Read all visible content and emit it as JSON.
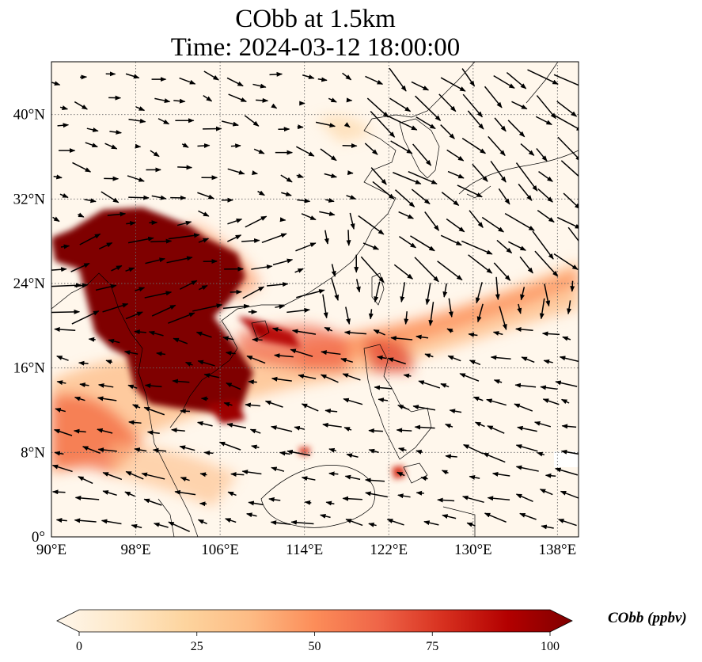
{
  "title": {
    "line1": "CObb at 1.5km",
    "line2": "Time: 2024-03-12 18:00:00"
  },
  "map": {
    "projection": "PlateCarree",
    "lon_range": [
      90,
      140
    ],
    "lat_range": [
      0,
      45
    ],
    "gridlines": true,
    "gridline_style": "dotted",
    "lon_ticks": [
      90,
      98,
      106,
      114,
      122,
      130,
      138
    ],
    "lon_tick_labels": [
      "90°E",
      "98°E",
      "106°E",
      "114°E",
      "122°E",
      "130°E",
      "138°E"
    ],
    "lat_ticks": [
      0,
      8,
      16,
      24,
      32,
      40
    ],
    "lat_tick_labels": [
      "0°",
      "8°N",
      "16°N",
      "24°N",
      "32°N",
      "40°N"
    ],
    "field": "CObb concentration",
    "vectors": "wind arrows"
  },
  "colorbar": {
    "label": "CObb (ppbv)",
    "min": 0,
    "max": 100,
    "ticks": [
      0,
      25,
      50,
      75,
      100
    ],
    "tick_labels": [
      "0",
      "25",
      "50",
      "75",
      "100"
    ],
    "extend": "both",
    "colormap": "OrRd",
    "colors": [
      "#fff7ec",
      "#fee8c8",
      "#fdd49e",
      "#fdbb84",
      "#fc8d59",
      "#ef6548",
      "#d7301f",
      "#b30000",
      "#7f0000"
    ]
  }
}
